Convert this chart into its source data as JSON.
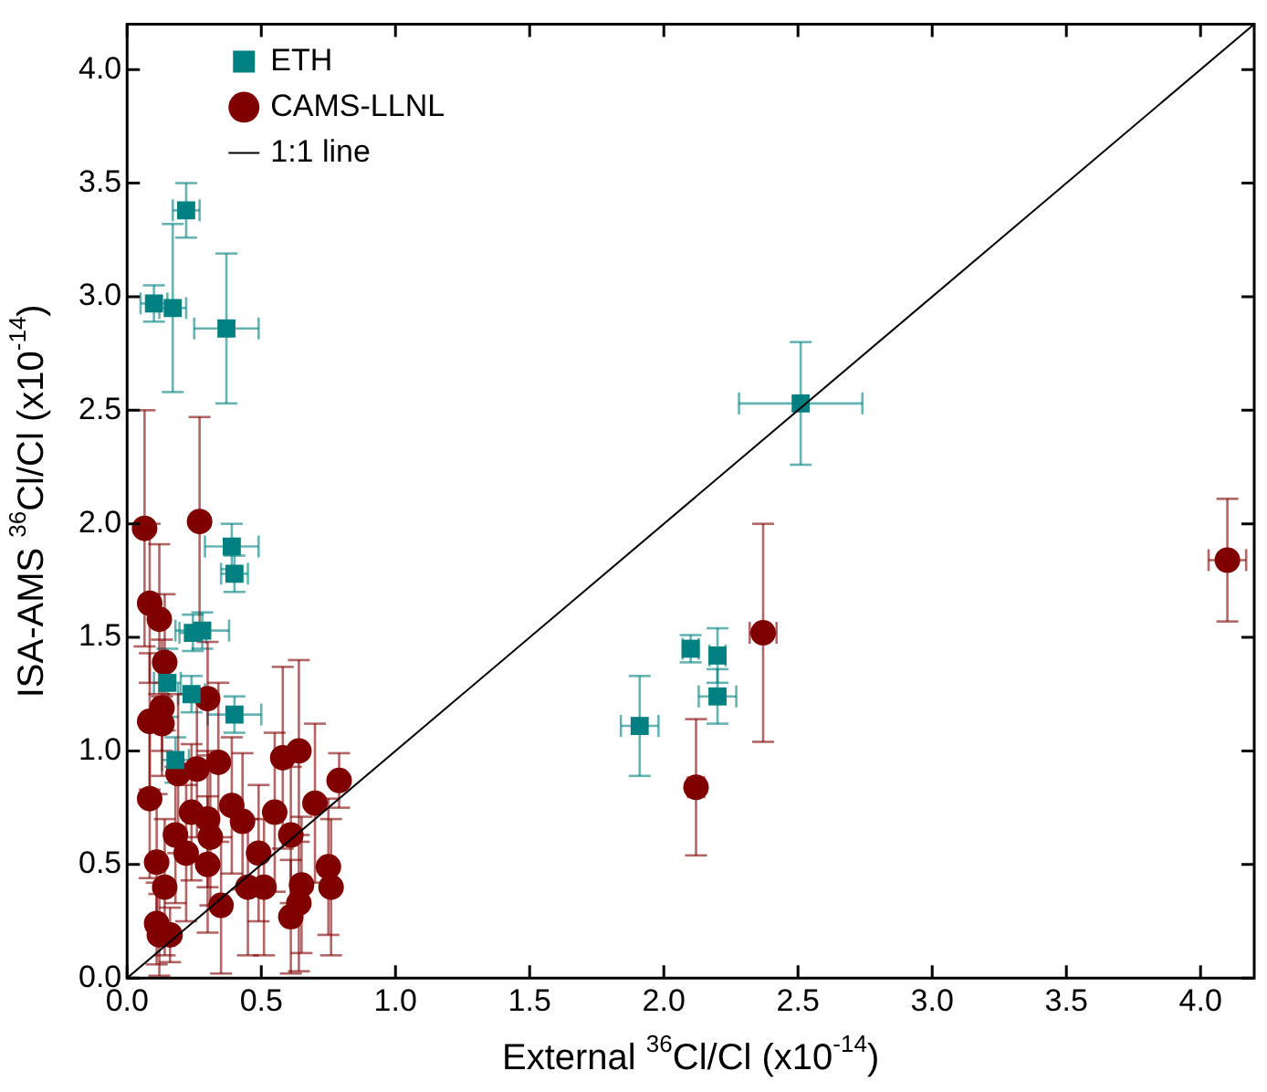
{
  "chart_data": {
    "type": "scatter",
    "xlabel": "External $^{36}$Cl/Cl (x10$^{-14}$)",
    "ylabel": "ISA-AMS $^{36}$Cl/Cl (x10$^{-14}$)",
    "xlim": [
      0,
      4.2
    ],
    "ylim": [
      0,
      4.2
    ],
    "xticks": [
      {
        "value": 0,
        "label": "0.0"
      },
      0.5,
      {
        "value": 1,
        "label": "1.0"
      },
      1.5,
      {
        "value": 2,
        "label": "2.0"
      },
      2.5,
      {
        "value": 3,
        "label": "3.0"
      },
      3.5,
      {
        "value": 4,
        "label": "4.0"
      }
    ],
    "yticks": [
      {
        "value": 0,
        "label": "0.0"
      },
      0.5,
      {
        "value": 1,
        "label": "1.0"
      },
      1.5,
      {
        "value": 2,
        "label": "2.0"
      },
      2.5,
      {
        "value": 3,
        "label": "3.0"
      },
      3.5,
      {
        "value": 4,
        "label": "4.0"
      }
    ],
    "legend": "top left",
    "grid": false,
    "series": [
      {
        "name": "ETH",
        "color": "#008080",
        "marker": "square",
        "x": [
          0.22,
          0.1,
          0.17,
          0.37,
          0.39,
          0.4,
          0.28,
          0.245,
          0.15,
          0.24,
          0.4,
          0.18,
          1.91,
          2.1,
          2.2,
          2.2,
          2.51
        ],
        "values": [
          3.38,
          2.97,
          2.95,
          2.86,
          1.9,
          1.78,
          1.53,
          1.52,
          1.3,
          1.25,
          1.16,
          0.96,
          1.11,
          1.45,
          1.42,
          1.24,
          2.53
        ],
        "errors": [
          0.12,
          0.08,
          0.37,
          0.33,
          0.1,
          0.08,
          0.08,
          0.08,
          0.15,
          0.08,
          0.08,
          0.1,
          0.22,
          0.06,
          0.12,
          0.12,
          0.27
        ],
        "xerrors": [
          0.05,
          0.05,
          0.05,
          0.12,
          0.1,
          0.05,
          0.1,
          0.05,
          0.05,
          0.05,
          0.1,
          0.05,
          0.07,
          0.03,
          0.03,
          0.07,
          0.23
        ]
      },
      {
        "name": "CAMS-LLNL",
        "color": "#800000",
        "marker": "circle",
        "x": [
          0.065,
          0.27,
          0.084,
          0.12,
          0.14,
          0.3,
          0.13,
          0.084,
          0.13,
          0.34,
          0.58,
          0.64,
          0.19,
          0.26,
          0.79,
          0.084,
          0.39,
          0.43,
          0.24,
          0.3,
          0.31,
          0.18,
          0.22,
          0.55,
          0.7,
          0.61,
          0.49,
          0.3,
          0.11,
          0.14,
          0.45,
          0.51,
          0.65,
          0.75,
          0.76,
          0.64,
          0.61,
          0.35,
          0.11,
          0.12,
          0.16,
          2.12,
          2.37,
          4.1
        ],
        "values": [
          1.98,
          2.01,
          1.65,
          1.58,
          1.39,
          1.23,
          1.19,
          1.13,
          1.12,
          0.95,
          0.97,
          1.0,
          0.9,
          0.92,
          0.87,
          0.79,
          0.76,
          0.69,
          0.73,
          0.7,
          0.62,
          0.63,
          0.55,
          0.73,
          0.77,
          0.63,
          0.55,
          0.5,
          0.51,
          0.4,
          0.4,
          0.4,
          0.41,
          0.49,
          0.4,
          0.33,
          0.27,
          0.32,
          0.24,
          0.19,
          0.19,
          0.84,
          1.52,
          1.84
        ],
        "errors": [
          0.52,
          0.46,
          0.35,
          0.33,
          0.3,
          0.25,
          0.3,
          0.3,
          0.12,
          0.35,
          0.4,
          0.4,
          0.35,
          0.3,
          0.12,
          0.35,
          0.3,
          0.3,
          0.3,
          0.3,
          0.3,
          0.3,
          0.3,
          0.35,
          0.35,
          0.3,
          0.3,
          0.3,
          0.3,
          0.3,
          0.3,
          0.3,
          0.3,
          0.3,
          0.3,
          0.3,
          0.25,
          0.3,
          0.18,
          0.18,
          0.12,
          0.3,
          0.48,
          0.27
        ],
        "xerrors": [
          null,
          null,
          null,
          null,
          null,
          null,
          null,
          null,
          null,
          null,
          null,
          null,
          null,
          null,
          null,
          null,
          null,
          null,
          null,
          null,
          null,
          null,
          null,
          null,
          null,
          null,
          null,
          null,
          null,
          null,
          null,
          null,
          null,
          null,
          null,
          null,
          null,
          null,
          null,
          null,
          null,
          0.03,
          0.05,
          0.07
        ]
      },
      {
        "name": "1:1 line",
        "type": "line",
        "color": "#000000",
        "marker": "none",
        "x": [
          0,
          4.2
        ],
        "values": [
          0,
          4.2
        ]
      }
    ]
  }
}
